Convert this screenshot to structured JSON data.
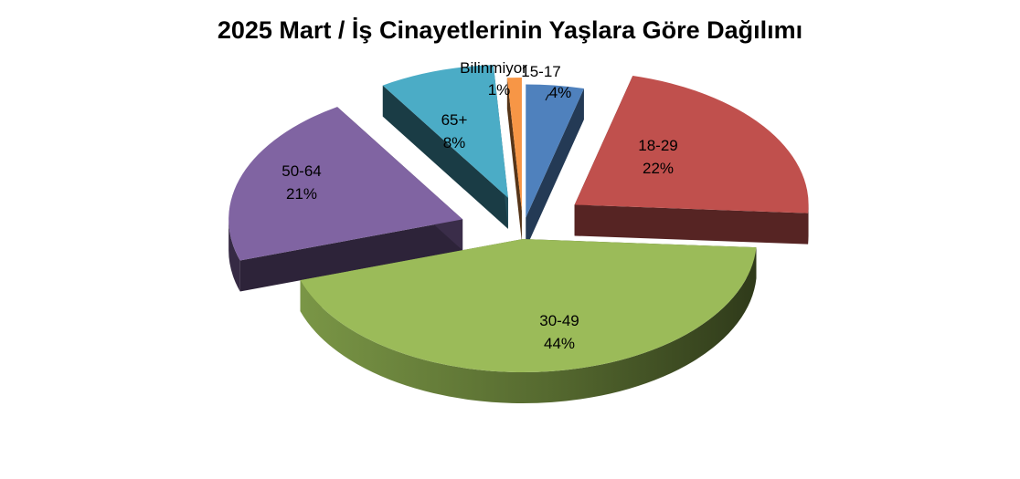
{
  "chart_data": {
    "type": "pie",
    "title": "2025 Mart / İş Cinayetlerinin Yaşlara Göre Dağılımı",
    "slices": [
      {
        "label": "15-17",
        "value": 4,
        "value_label": "4%",
        "color": "#4F81BD"
      },
      {
        "label": "18-29",
        "value": 22,
        "value_label": "22%",
        "color": "#C0504D"
      },
      {
        "label": "30-49",
        "value": 44,
        "value_label": "44%",
        "color": "#9BBB59"
      },
      {
        "label": "50-64",
        "value": 21,
        "value_label": "21%",
        "color": "#8064A2"
      },
      {
        "label": "65+",
        "value": 8,
        "value_label": "8%",
        "color": "#4BACC6"
      },
      {
        "label": "Bilinmiyor",
        "value": 1,
        "value_label": "1%",
        "color": "#F79646"
      }
    ],
    "legend": "none"
  }
}
